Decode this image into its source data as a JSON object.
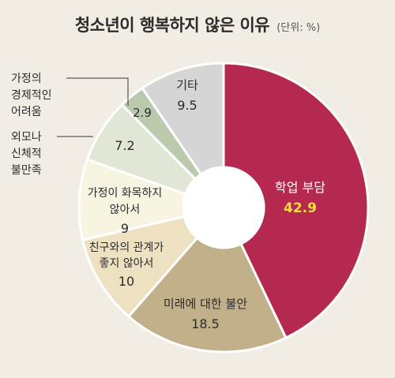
{
  "chart_data": {
    "type": "pie",
    "style": "donut",
    "title": "청소년이 행복하지 않은 이유",
    "unit_note": "(단위: %)",
    "slices": [
      {
        "label": "학업 부담",
        "value": 42.9,
        "value_text": "42.9",
        "color": "#b5284f",
        "label_color": "#ffffff",
        "value_color": "#f5de3c"
      },
      {
        "label": "미래에 대한 불안",
        "value": 18.5,
        "value_text": "18.5",
        "color": "#c2b08a",
        "label_color": "#2b2b2b",
        "value_color": "#2b2b2b"
      },
      {
        "label": "친구와의 관계가\n좋지 않아서",
        "value": 10,
        "value_text": "10",
        "color": "#eee1c2",
        "label_color": "#2b2b2b",
        "value_color": "#2b2b2b"
      },
      {
        "label": "가정이 화목하지\n않아서",
        "value": 9,
        "value_text": "9",
        "color": "#f7f4e2",
        "label_color": "#2b2b2b",
        "value_color": "#2b2b2b"
      },
      {
        "label": "외모나\n신체적\n불만족",
        "value": 7.2,
        "value_text": "7.2",
        "color": "#e1e7d6",
        "label_color": "#2b2b2b",
        "value_color": "#2b2b2b"
      },
      {
        "label": "가정의\n경제적인\n어려움",
        "value": 2.9,
        "value_text": "2.9",
        "color": "#bbc9ad",
        "label_color": "#2b2b2b",
        "value_color": "#2b2b2b"
      },
      {
        "label": "기타",
        "value": 9.5,
        "value_text": "9.5",
        "color": "#d5d5d5",
        "label_color": "#2b2b2b",
        "value_color": "#2b2b2b"
      }
    ]
  }
}
